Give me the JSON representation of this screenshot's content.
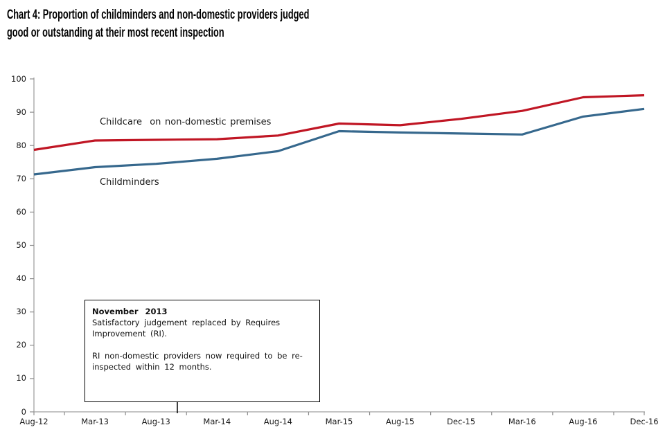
{
  "title": {
    "lines": [
      "Chart 4: Proportion of childminders and non-domestic providers judged",
      "good or outstanding at their most recent inspection"
    ]
  },
  "chart_data": {
    "type": "line",
    "categories": [
      "Aug-12",
      "Mar-13",
      "Aug-13",
      "Mar-14",
      "Aug-14",
      "Mar-15",
      "Aug-15",
      "Dec-15",
      "Mar-16",
      "Aug-16",
      "Dec-16"
    ],
    "series": [
      {
        "name": "Childcare  on non-domestic premises",
        "color": "#C01624",
        "values": [
          78.7,
          81.5,
          81.7,
          81.9,
          83.0,
          86.6,
          86.1,
          88.0,
          90.4,
          94.5,
          95.1
        ]
      },
      {
        "name": "Childminders",
        "color": "#36688D",
        "values": [
          71.3,
          73.5,
          74.5,
          76.0,
          78.3,
          84.3,
          83.9,
          83.6,
          83.3,
          88.7,
          91.0
        ]
      }
    ],
    "ylabel": "",
    "xlabel": "",
    "ylim": [
      0,
      100
    ],
    "ytick_step": 10,
    "grid": false,
    "legend": "inline-labels-on-chart",
    "annotation": {
      "heading": "November 2013",
      "body1": "Satisfactory judgement replaced by Requires Improvement (RI).",
      "body2": "RI non-domestic providers now required to be re-inspected within 12 months.",
      "leader_points_to": "Nov-13 on x-axis"
    }
  },
  "colors": {
    "axis": "#A0A0A0",
    "tick": "#8E8E8E",
    "leader_line": "#000000",
    "text": "#1a1a1a"
  }
}
